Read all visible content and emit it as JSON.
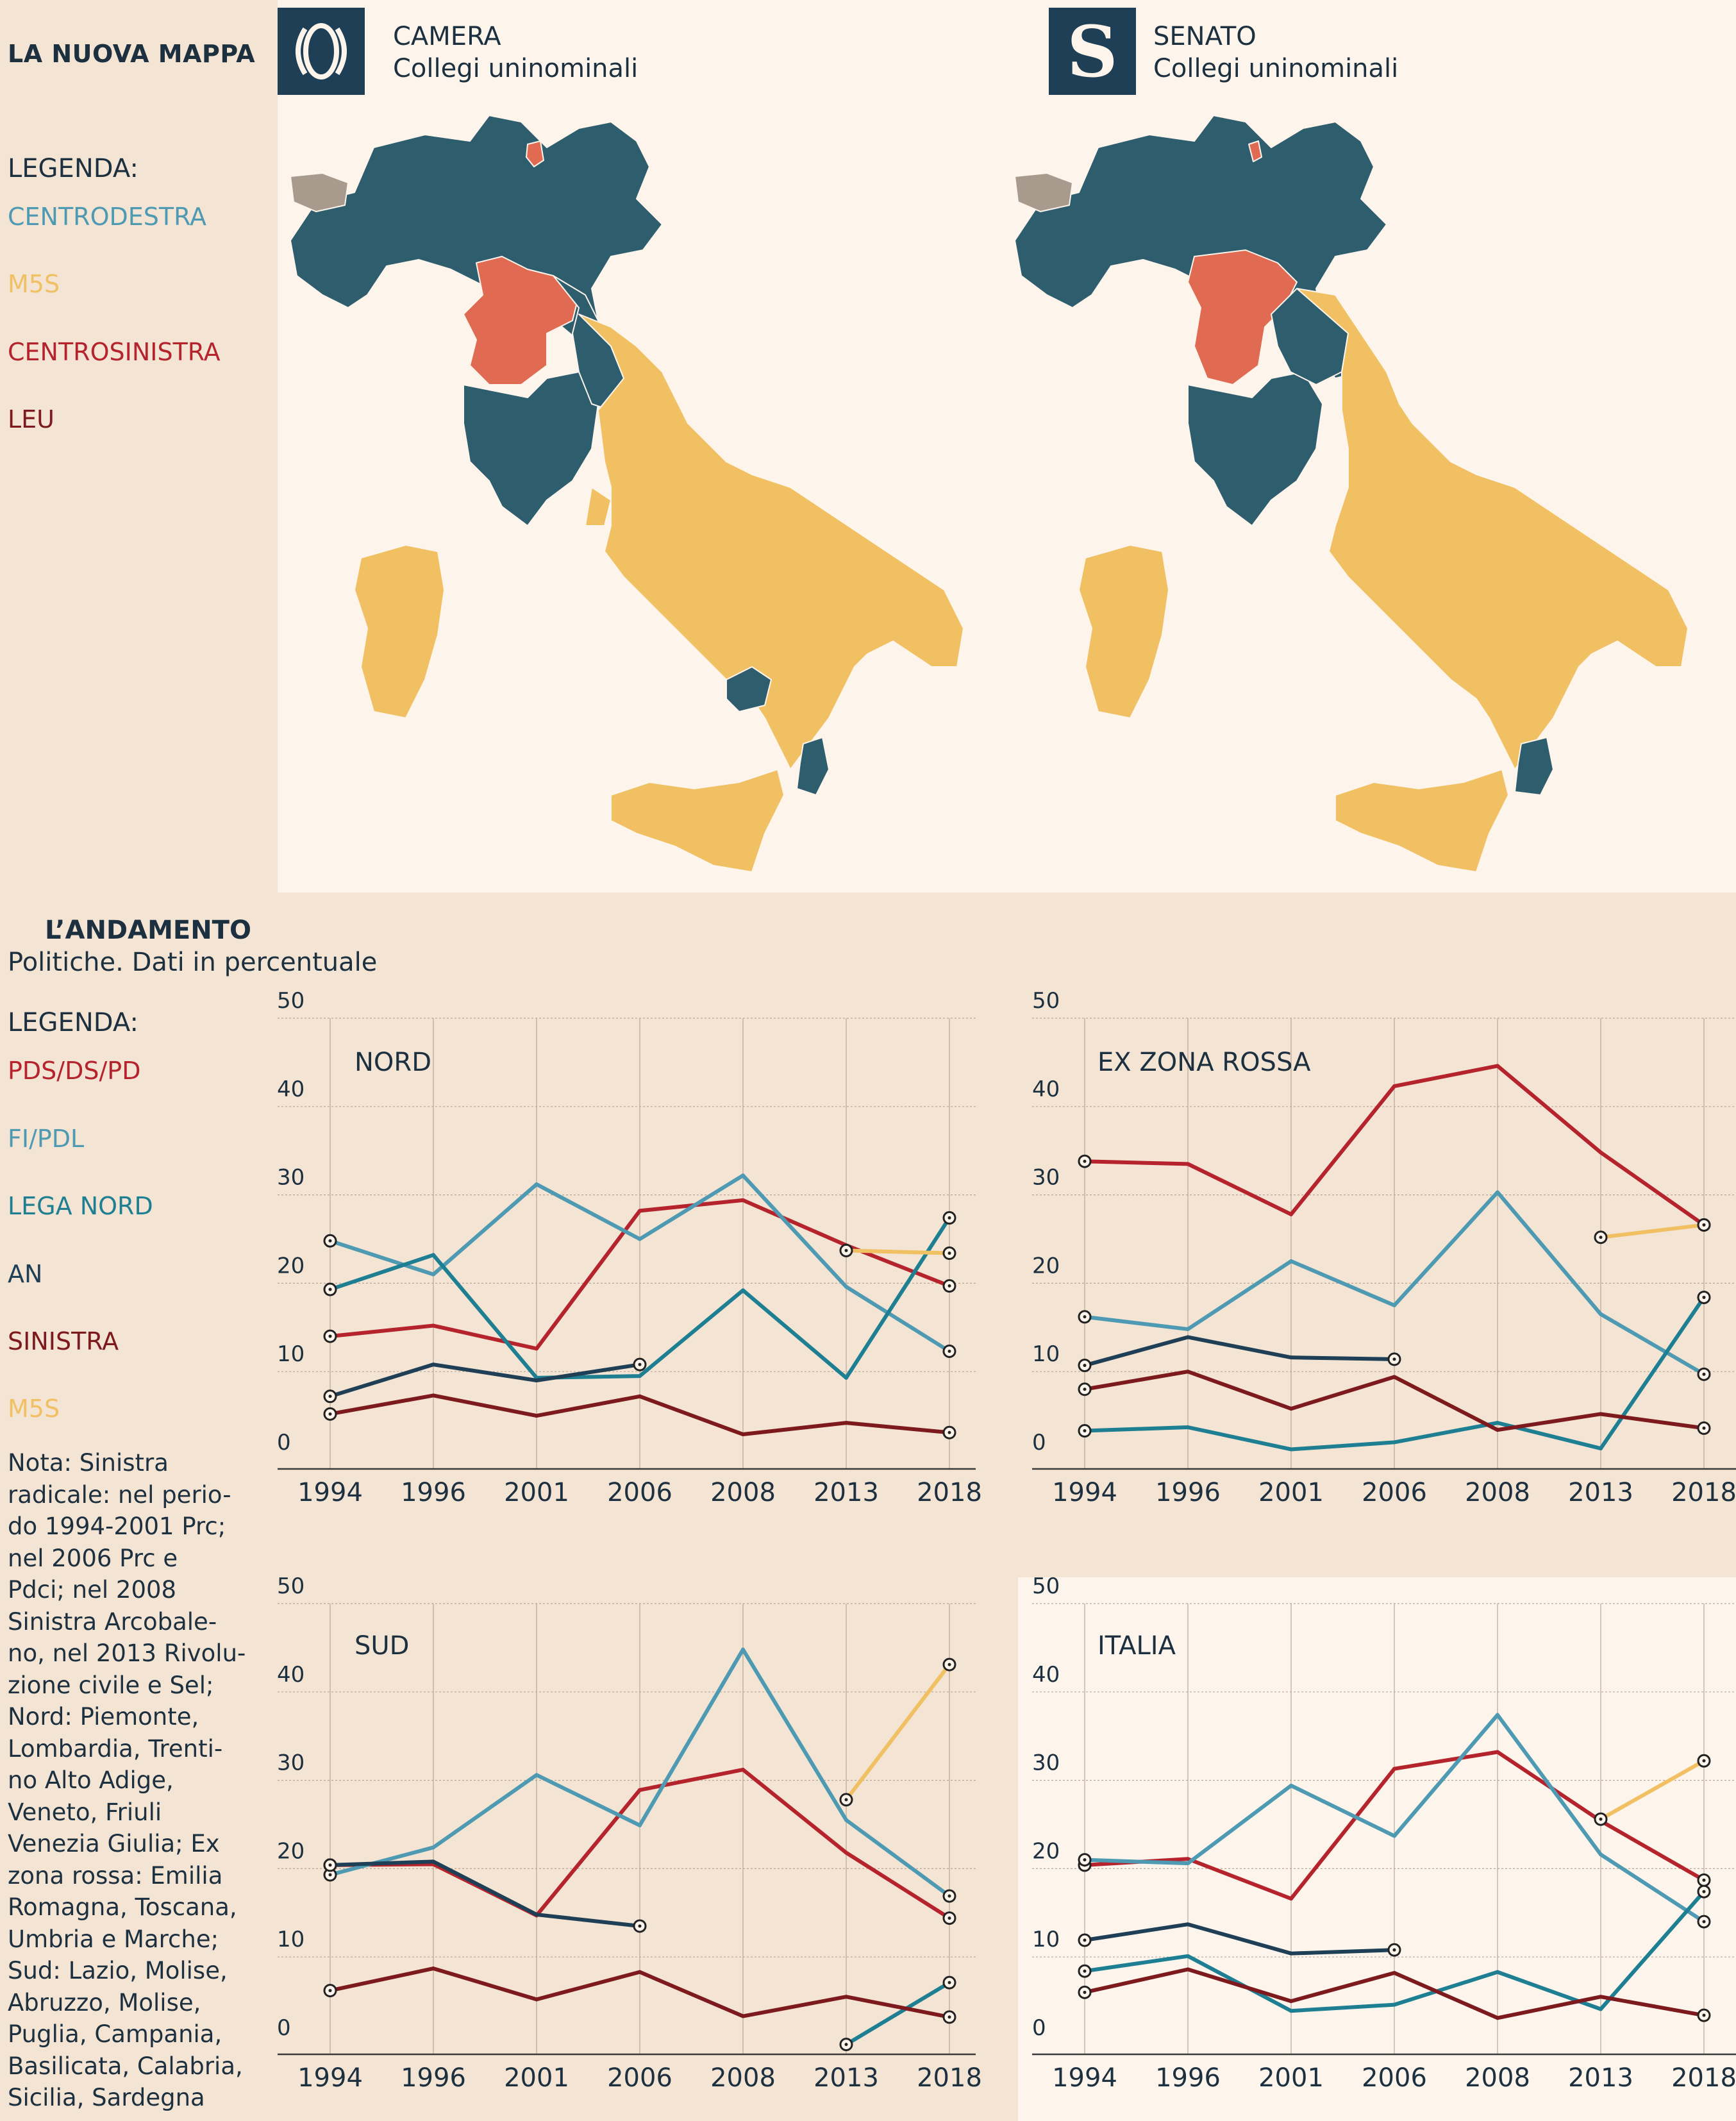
{
  "header": {
    "title": "LA NUOVA MAPPA",
    "legend_label": "LEGENDA:",
    "legend": [
      {
        "label": "CENTRODESTRA",
        "color": "#4e9ab3"
      },
      {
        "label": "M5S",
        "color": "#f0c063"
      },
      {
        "label": "CENTROSINISTRA",
        "color": "#b5232d"
      },
      {
        "label": "LEU",
        "color": "#7d1a1e"
      }
    ]
  },
  "maps": [
    {
      "icon": "camera-emblem-icon",
      "title": "CAMERA",
      "subtitle": "Collegi uninominali"
    },
    {
      "icon": "senato-emblem-icon",
      "title": "SENATO",
      "subtitle": "Collegi uninominali",
      "icon_letter": "S"
    }
  ],
  "map_colors": {
    "centrodestra": "#2e5d6e",
    "m5s": "#f0c063",
    "centrosinistra": "#e06a52",
    "altro": "#a89a8c",
    "background": "#fdf5ec"
  },
  "trend": {
    "title": "L’ANDAMENTO",
    "subtitle": "Politiche. Dati in percentuale",
    "legend_label": "LEGENDA:",
    "legend": [
      {
        "label": "PDS/DS/PD",
        "color": "#b5232d"
      },
      {
        "label": "FI/PDL",
        "color": "#4e9ab3"
      },
      {
        "label": "LEGA NORD",
        "color": "#1e7f93"
      },
      {
        "label": "AN",
        "color": "#1e3f55"
      },
      {
        "label": "SINISTRA",
        "color": "#7d1a1e"
      },
      {
        "label": "M5S",
        "color": "#f0c063"
      }
    ],
    "note": "Nota: Sinistra radicale: nel perio-do 1994-2001 Prc; nel 2006 Prc e Pdci; nel 2008 Sinistra Arcobale-no, nel 2013 Rivolu-zione civile e Sel; Nord: Piemonte, Lombardia, Trenti-no Alto Adige, Veneto, Friuli Venezia Giulia; Ex zona rossa: Emilia Romagna, Toscana, Umbria e Marche; Sud: Lazio, Molise, Abruzzo, Molise, Puglia, Campania, Basilicata, Calabria, Sicilia, Sardegna",
    "note_lines": [
      "Nota: Sinistra",
      "radicale: nel perio-",
      "do 1994-2001 Prc;",
      "nel 2006 Prc e",
      "Pdci; nel 2008",
      "Sinistra Arcobale-",
      "no, nel 2013 Rivolu-",
      "zione civile e Sel;",
      "Nord: Piemonte,",
      "Lombardia, Trenti-",
      "no Alto Adige,",
      "Veneto, Friuli",
      "Venezia Giulia; Ex",
      "zona rossa: Emilia",
      "Romagna, Toscana,",
      "Umbria e Marche;",
      "Sud: Lazio, Molise,",
      "Abruzzo, Molise,",
      "Puglia, Campania,",
      "Basilicata, Calabria,",
      "Sicilia, Sardegna"
    ]
  },
  "chart_data": [
    {
      "type": "line",
      "title": "NORD",
      "x": [
        "1994",
        "1996",
        "2001",
        "2006",
        "2008",
        "2013",
        "2018"
      ],
      "ylim": [
        0,
        50
      ],
      "yticks": [
        0,
        10,
        20,
        30,
        40,
        50
      ],
      "grid": true,
      "series": [
        {
          "name": "PDS/DS/PD",
          "color": "#b5232d",
          "values": [
            14,
            15.2,
            12.6,
            28.2,
            29.4,
            24.3,
            19.7
          ]
        },
        {
          "name": "FI/PDL",
          "color": "#4e9ab3",
          "values": [
            24.8,
            21,
            31.2,
            25,
            32.2,
            19.6,
            12.3
          ]
        },
        {
          "name": "LEGA NORD",
          "color": "#1e7f93",
          "values": [
            19.3,
            23.2,
            9.3,
            9.5,
            19.2,
            9.3,
            27.4
          ]
        },
        {
          "name": "AN",
          "color": "#1e3f55",
          "values": [
            7.2,
            10.8,
            9,
            10.8,
            null,
            null,
            null
          ]
        },
        {
          "name": "SINISTRA",
          "color": "#7d1a1e",
          "values": [
            5.2,
            7.3,
            5,
            7.2,
            2.9,
            4.2,
            3.1
          ]
        },
        {
          "name": "M5S",
          "color": "#f0c063",
          "values": [
            null,
            null,
            null,
            null,
            null,
            23.7,
            23.4
          ]
        }
      ]
    },
    {
      "type": "line",
      "title": "EX ZONA ROSSA",
      "x": [
        "1994",
        "1996",
        "2001",
        "2006",
        "2008",
        "2013",
        "2018"
      ],
      "ylim": [
        0,
        50
      ],
      "yticks": [
        0,
        10,
        20,
        30,
        40,
        50
      ],
      "grid": true,
      "series": [
        {
          "name": "PDS/DS/PD",
          "color": "#b5232d",
          "values": [
            33.8,
            33.5,
            27.8,
            42.3,
            44.6,
            34.8,
            26.6
          ]
        },
        {
          "name": "FI/PDL",
          "color": "#4e9ab3",
          "values": [
            16.2,
            14.8,
            22.5,
            17.5,
            30.3,
            16.5,
            9.7
          ]
        },
        {
          "name": "LEGA NORD",
          "color": "#1e7f93",
          "values": [
            3.3,
            3.7,
            1.2,
            2,
            4.2,
            1.3,
            18.4
          ]
        },
        {
          "name": "AN",
          "color": "#1e3f55",
          "values": [
            10.7,
            13.9,
            11.6,
            11.4,
            null,
            null,
            null
          ]
        },
        {
          "name": "SINISTRA",
          "color": "#7d1a1e",
          "values": [
            8,
            10,
            5.8,
            9.4,
            3.4,
            5.2,
            3.6
          ]
        },
        {
          "name": "M5S",
          "color": "#f0c063",
          "values": [
            null,
            null,
            null,
            null,
            null,
            25.2,
            26.6
          ]
        }
      ]
    },
    {
      "type": "line",
      "title": "SUD",
      "x": [
        "1994",
        "1996",
        "2001",
        "2006",
        "2008",
        "2013",
        "2018"
      ],
      "ylim": [
        0,
        50
      ],
      "yticks": [
        0,
        10,
        20,
        30,
        40,
        50
      ],
      "grid": true,
      "series": [
        {
          "name": "PDS/DS/PD",
          "color": "#b5232d",
          "values": [
            20.4,
            20.5,
            14.7,
            28.9,
            31.2,
            21.8,
            14.4
          ]
        },
        {
          "name": "FI/PDL",
          "color": "#4e9ab3",
          "values": [
            19.3,
            22.4,
            30.6,
            24.9,
            44.8,
            25.5,
            16.9
          ]
        },
        {
          "name": "LEGA NORD",
          "color": "#1e7f93",
          "values": [
            null,
            null,
            null,
            null,
            null,
            0.1,
            7.1
          ]
        },
        {
          "name": "AN",
          "color": "#1e3f55",
          "values": [
            20.4,
            20.8,
            14.8,
            13.5,
            null,
            null,
            null
          ]
        },
        {
          "name": "SINISTRA",
          "color": "#7d1a1e",
          "values": [
            6.2,
            8.7,
            5.2,
            8.3,
            3.3,
            5.5,
            3.2
          ]
        },
        {
          "name": "M5S",
          "color": "#f0c063",
          "values": [
            null,
            null,
            null,
            null,
            null,
            27.8,
            43.1
          ]
        }
      ]
    },
    {
      "type": "line",
      "title": "ITALIA",
      "x": [
        "1994",
        "1996",
        "2001",
        "2006",
        "2008",
        "2013",
        "2018"
      ],
      "ylim": [
        0,
        50
      ],
      "yticks": [
        0,
        10,
        20,
        30,
        40,
        50
      ],
      "grid": true,
      "series": [
        {
          "name": "PDS/DS/PD",
          "color": "#b5232d",
          "values": [
            20.4,
            21.1,
            16.6,
            31.3,
            33.2,
            25.4,
            18.7
          ]
        },
        {
          "name": "FI/PDL",
          "color": "#4e9ab3",
          "values": [
            21,
            20.6,
            29.4,
            23.7,
            37.4,
            21.6,
            14
          ]
        },
        {
          "name": "LEGA NORD",
          "color": "#1e7f93",
          "values": [
            8.4,
            10.1,
            3.9,
            4.6,
            8.3,
            4.1,
            17.4
          ]
        },
        {
          "name": "AN",
          "color": "#1e3f55",
          "values": [
            11.9,
            13.7,
            10.4,
            10.8,
            null,
            null,
            null
          ]
        },
        {
          "name": "SINISTRA",
          "color": "#7d1a1e",
          "values": [
            6,
            8.6,
            5,
            8.2,
            3.1,
            5.5,
            3.4
          ]
        },
        {
          "name": "M5S",
          "color": "#f0c063",
          "values": [
            null,
            null,
            null,
            null,
            null,
            25.6,
            32.2
          ]
        }
      ]
    }
  ]
}
